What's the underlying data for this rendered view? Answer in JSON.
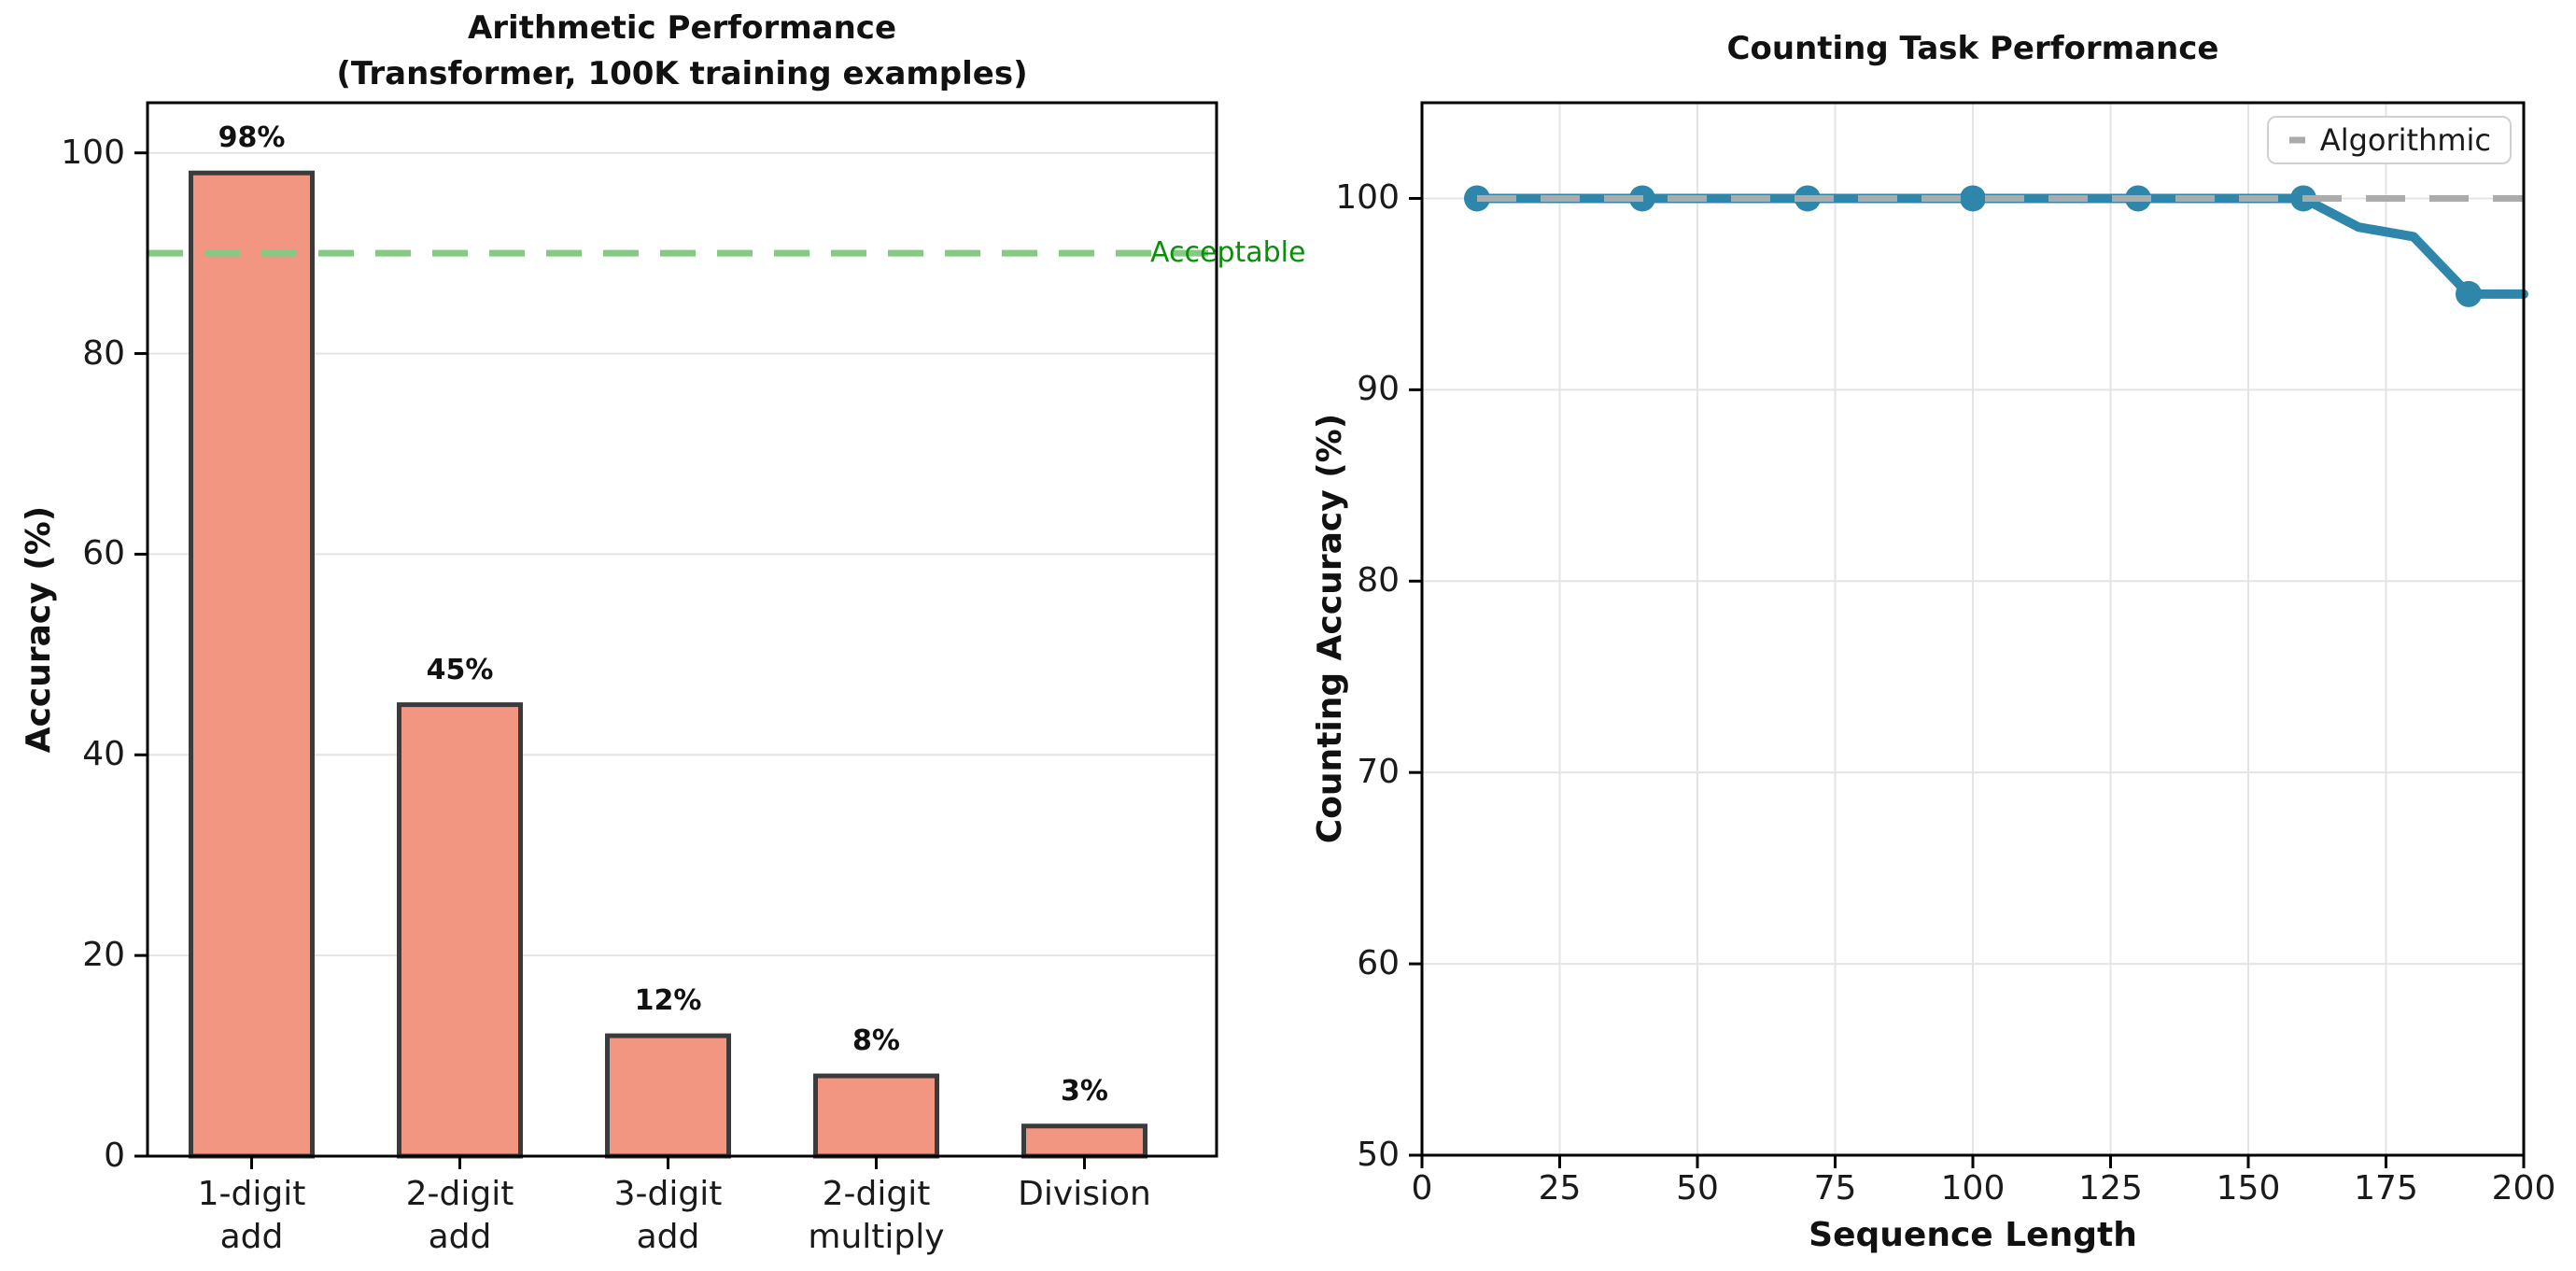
{
  "chart_data": [
    {
      "type": "bar",
      "title": "Arithmetic Performance",
      "subtitle": "(Transformer, 100K training examples)",
      "categories": [
        "1-digit\nadd",
        "2-digit\nadd",
        "3-digit\nadd",
        "2-digit\nmultiply",
        "Division"
      ],
      "values": [
        98,
        45,
        12,
        8,
        3
      ],
      "bar_labels": [
        "98%",
        "45%",
        "12%",
        "8%",
        "3%"
      ],
      "xlabel": "",
      "ylabel": "Accuracy (%)",
      "ylim": [
        0,
        105
      ],
      "yticks": [
        0,
        20,
        40,
        60,
        80,
        100
      ],
      "grid": "y",
      "bar_color": "#F29682",
      "bar_edge_color": "#3B3B3B",
      "threshold": {
        "value": 90,
        "label": "Acceptable",
        "line_color": "#85C985",
        "label_color": "#0B8F0B"
      }
    },
    {
      "type": "line",
      "title": "Counting Task Performance",
      "xlabel": "Sequence Length",
      "ylabel": "Counting Accuracy (%)",
      "xlim": [
        0,
        200
      ],
      "ylim": [
        50,
        105
      ],
      "xticks": [
        0,
        25,
        50,
        75,
        100,
        125,
        150,
        175,
        200
      ],
      "yticks": [
        50,
        60,
        70,
        80,
        90,
        100
      ],
      "grid": "both",
      "series": [
        {
          "x": [
            10,
            20,
            30,
            40,
            50,
            60,
            70,
            80,
            90,
            100,
            110,
            120,
            130,
            140,
            150,
            160,
            170,
            180,
            190,
            200
          ],
          "y": [
            100,
            100,
            100,
            100,
            100,
            100,
            100,
            100,
            100,
            100,
            100,
            100,
            100,
            100,
            100,
            100,
            98.5,
            98,
            95,
            95
          ],
          "marker_x": [
            10,
            40,
            70,
            100,
            130,
            160,
            190
          ],
          "color": "#2E86AB"
        },
        {
          "name": "Algorithmic",
          "x": [
            10,
            200
          ],
          "y": [
            100,
            100
          ],
          "color": "#ABABAB",
          "style": "dashed"
        }
      ],
      "legend": {
        "entries": [
          "Algorithmic"
        ],
        "position": "upper right"
      }
    }
  ]
}
